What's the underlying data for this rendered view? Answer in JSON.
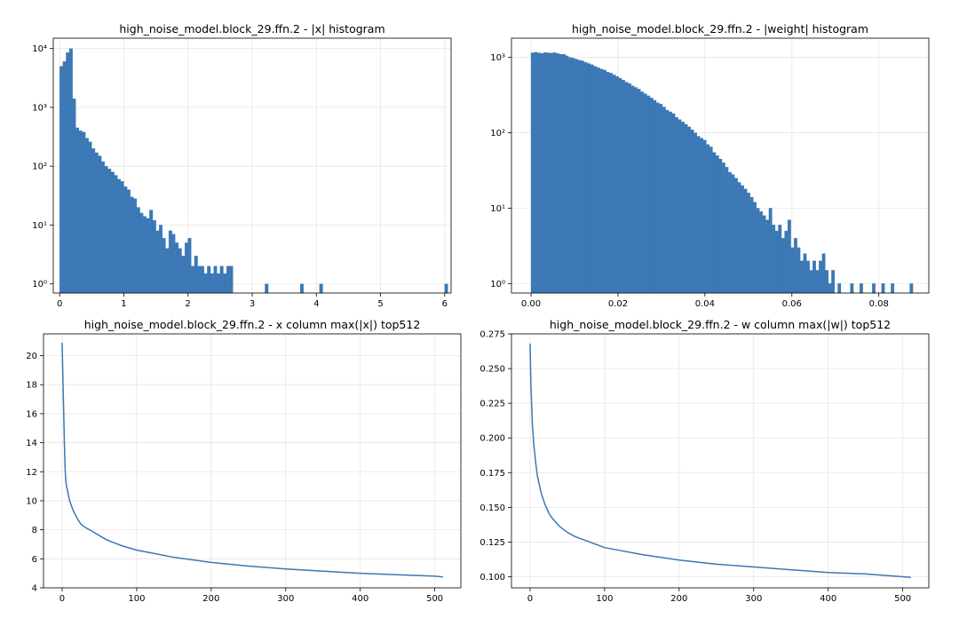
{
  "chart_data": [
    {
      "type": "bar",
      "title": "high_noise_model.block_29.ffn.2 - |x| histogram",
      "xlabel": "",
      "ylabel": "",
      "y_scale": "log",
      "xlim": [
        -0.1,
        6.1
      ],
      "ylim": [
        0.7,
        15000
      ],
      "x_ticks": [
        0,
        1,
        2,
        3,
        4,
        5,
        6
      ],
      "x_tick_labels": [
        "0",
        "1",
        "2",
        "3",
        "4",
        "5",
        "6"
      ],
      "y_ticks": [
        1,
        10,
        100,
        1000,
        10000
      ],
      "y_tick_labels": [
        "10⁰",
        "10¹",
        "10²",
        "10³",
        "10⁴"
      ],
      "grid": true,
      "color": "#3b78b5",
      "bin_width": 0.05,
      "bins": [
        [
          0.0,
          5000
        ],
        [
          0.05,
          6000
        ],
        [
          0.1,
          8500
        ],
        [
          0.15,
          10000
        ],
        [
          0.2,
          1400
        ],
        [
          0.25,
          450
        ],
        [
          0.3,
          400
        ],
        [
          0.35,
          380
        ],
        [
          0.4,
          300
        ],
        [
          0.45,
          260
        ],
        [
          0.5,
          200
        ],
        [
          0.55,
          170
        ],
        [
          0.6,
          150
        ],
        [
          0.65,
          120
        ],
        [
          0.7,
          100
        ],
        [
          0.75,
          90
        ],
        [
          0.8,
          80
        ],
        [
          0.85,
          70
        ],
        [
          0.9,
          60
        ],
        [
          0.95,
          55
        ],
        [
          1.0,
          45
        ],
        [
          1.05,
          40
        ],
        [
          1.1,
          30
        ],
        [
          1.15,
          28
        ],
        [
          1.2,
          20
        ],
        [
          1.25,
          16
        ],
        [
          1.3,
          14
        ],
        [
          1.35,
          13
        ],
        [
          1.4,
          18
        ],
        [
          1.45,
          12
        ],
        [
          1.5,
          8
        ],
        [
          1.55,
          10
        ],
        [
          1.6,
          6
        ],
        [
          1.65,
          4
        ],
        [
          1.7,
          8
        ],
        [
          1.75,
          7
        ],
        [
          1.8,
          5
        ],
        [
          1.85,
          4
        ],
        [
          1.9,
          3
        ],
        [
          1.95,
          5
        ],
        [
          2.0,
          6
        ],
        [
          2.05,
          2
        ],
        [
          2.1,
          3
        ],
        [
          2.15,
          2
        ],
        [
          2.2,
          2
        ],
        [
          2.25,
          1.5
        ],
        [
          2.3,
          2
        ],
        [
          2.35,
          1.5
        ],
        [
          2.4,
          2
        ],
        [
          2.45,
          1.5
        ],
        [
          2.5,
          2
        ],
        [
          2.55,
          1.5
        ],
        [
          2.6,
          2
        ],
        [
          2.65,
          2
        ],
        [
          3.2,
          1
        ],
        [
          3.75,
          1
        ],
        [
          4.05,
          1
        ],
        [
          6.0,
          1
        ]
      ]
    },
    {
      "type": "bar",
      "title": "high_noise_model.block_29.ffn.2 - |weight| histogram",
      "xlabel": "",
      "ylabel": "",
      "y_scale": "log",
      "xlim": [
        -0.0045,
        0.0915
      ],
      "ylim": [
        0.75,
        1800
      ],
      "x_ticks": [
        0.0,
        0.02,
        0.04,
        0.06,
        0.08
      ],
      "x_tick_labels": [
        "0.00",
        "0.02",
        "0.04",
        "0.06",
        "0.08"
      ],
      "y_ticks": [
        1,
        10,
        100,
        1000
      ],
      "y_tick_labels": [
        "10⁰",
        "10¹",
        "10²",
        "10³"
      ],
      "grid": true,
      "color": "#3b78b5",
      "bin_width": 0.00072,
      "bins": [
        [
          0.0,
          1150
        ],
        [
          0.00072,
          1170
        ],
        [
          0.00144,
          1150
        ],
        [
          0.00216,
          1130
        ],
        [
          0.00288,
          1160
        ],
        [
          0.0036,
          1150
        ],
        [
          0.00432,
          1140
        ],
        [
          0.00504,
          1160
        ],
        [
          0.00576,
          1130
        ],
        [
          0.00648,
          1100
        ],
        [
          0.0072,
          1100
        ],
        [
          0.00792,
          1050
        ],
        [
          0.00864,
          1000
        ],
        [
          0.00936,
          980
        ],
        [
          0.01008,
          950
        ],
        [
          0.0108,
          920
        ],
        [
          0.01152,
          900
        ],
        [
          0.01224,
          860
        ],
        [
          0.01296,
          830
        ],
        [
          0.01368,
          800
        ],
        [
          0.0144,
          760
        ],
        [
          0.01512,
          730
        ],
        [
          0.01584,
          700
        ],
        [
          0.01656,
          680
        ],
        [
          0.01728,
          640
        ],
        [
          0.018,
          620
        ],
        [
          0.01872,
          590
        ],
        [
          0.01944,
          560
        ],
        [
          0.02016,
          530
        ],
        [
          0.02088,
          500
        ],
        [
          0.0216,
          470
        ],
        [
          0.02232,
          450
        ],
        [
          0.02304,
          420
        ],
        [
          0.02376,
          400
        ],
        [
          0.02448,
          380
        ],
        [
          0.0252,
          350
        ],
        [
          0.02592,
          330
        ],
        [
          0.02664,
          310
        ],
        [
          0.02736,
          290
        ],
        [
          0.02808,
          270
        ],
        [
          0.0288,
          250
        ],
        [
          0.02952,
          240
        ],
        [
          0.03024,
          220
        ],
        [
          0.03096,
          200
        ],
        [
          0.03168,
          190
        ],
        [
          0.0324,
          180
        ],
        [
          0.03312,
          160
        ],
        [
          0.03384,
          150
        ],
        [
          0.03456,
          140
        ],
        [
          0.03528,
          130
        ],
        [
          0.036,
          120
        ],
        [
          0.03672,
          110
        ],
        [
          0.03744,
          100
        ],
        [
          0.03816,
          90
        ],
        [
          0.03888,
          85
        ],
        [
          0.0396,
          80
        ],
        [
          0.04032,
          70
        ],
        [
          0.04104,
          65
        ],
        [
          0.04176,
          55
        ],
        [
          0.04248,
          50
        ],
        [
          0.0432,
          45
        ],
        [
          0.04392,
          40
        ],
        [
          0.04464,
          35
        ],
        [
          0.04536,
          30
        ],
        [
          0.04608,
          28
        ],
        [
          0.0468,
          25
        ],
        [
          0.04752,
          22
        ],
        [
          0.04824,
          20
        ],
        [
          0.04896,
          18
        ],
        [
          0.04968,
          16
        ],
        [
          0.0504,
          14
        ],
        [
          0.05112,
          12
        ],
        [
          0.05184,
          10
        ],
        [
          0.05256,
          9
        ],
        [
          0.05328,
          8
        ],
        [
          0.054,
          7
        ],
        [
          0.05472,
          10
        ],
        [
          0.05544,
          6
        ],
        [
          0.05616,
          5
        ],
        [
          0.05688,
          6
        ],
        [
          0.0576,
          4
        ],
        [
          0.05832,
          5
        ],
        [
          0.05904,
          7
        ],
        [
          0.05976,
          3
        ],
        [
          0.06048,
          4
        ],
        [
          0.0612,
          3
        ],
        [
          0.06192,
          2
        ],
        [
          0.06264,
          2.5
        ],
        [
          0.06336,
          2
        ],
        [
          0.06408,
          1.5
        ],
        [
          0.0648,
          2
        ],
        [
          0.06552,
          1.5
        ],
        [
          0.06624,
          2
        ],
        [
          0.06696,
          2.5
        ],
        [
          0.06768,
          1.5
        ],
        [
          0.0684,
          1
        ],
        [
          0.06912,
          1.5
        ],
        [
          0.07056,
          1
        ],
        [
          0.07344,
          1
        ],
        [
          0.0756,
          1
        ],
        [
          0.07848,
          1
        ],
        [
          0.08064,
          1
        ],
        [
          0.0828,
          1
        ],
        [
          0.08712,
          1
        ]
      ]
    },
    {
      "type": "line",
      "title": "high_noise_model.block_29.ffn.2 - x column max(|x|) top512",
      "xlabel": "",
      "ylabel": "",
      "xlim": [
        -25,
        535
      ],
      "ylim": [
        4,
        21.5
      ],
      "x_ticks": [
        0,
        100,
        200,
        300,
        400,
        500
      ],
      "y_ticks": [
        4,
        6,
        8,
        10,
        12,
        14,
        16,
        18,
        20
      ],
      "grid": true,
      "color": "#3b78b5",
      "x": [
        0,
        1,
        2,
        3,
        4,
        5,
        6,
        8,
        10,
        15,
        20,
        25,
        30,
        40,
        50,
        60,
        70,
        80,
        100,
        120,
        150,
        200,
        250,
        300,
        350,
        400,
        450,
        500,
        511
      ],
      "y": [
        20.9,
        18.5,
        16.3,
        14.0,
        12.2,
        11.3,
        11.0,
        10.5,
        10.0,
        9.3,
        8.8,
        8.4,
        8.2,
        7.9,
        7.6,
        7.3,
        7.1,
        6.9,
        6.6,
        6.4,
        6.1,
        5.75,
        5.5,
        5.3,
        5.15,
        5.0,
        4.9,
        4.8,
        4.75
      ]
    },
    {
      "type": "line",
      "title": "high_noise_model.block_29.ffn.2 - w column max(|w|) top512",
      "xlabel": "",
      "ylabel": "",
      "xlim": [
        -25,
        535
      ],
      "ylim": [
        0.092,
        0.275
      ],
      "x_ticks": [
        0,
        100,
        200,
        300,
        400,
        500
      ],
      "y_ticks": [
        0.1,
        0.125,
        0.15,
        0.175,
        0.2,
        0.225,
        0.25,
        0.275
      ],
      "y_tick_labels": [
        "0.100",
        "0.125",
        "0.150",
        "0.175",
        "0.200",
        "0.225",
        "0.250",
        "0.275"
      ],
      "grid": true,
      "color": "#3b78b5",
      "x": [
        0,
        1,
        2,
        3,
        5,
        8,
        10,
        15,
        20,
        25,
        30,
        40,
        50,
        60,
        70,
        80,
        100,
        120,
        150,
        200,
        250,
        300,
        350,
        400,
        450,
        500,
        511
      ],
      "y": [
        0.268,
        0.24,
        0.225,
        0.21,
        0.195,
        0.18,
        0.172,
        0.16,
        0.152,
        0.146,
        0.142,
        0.136,
        0.132,
        0.129,
        0.127,
        0.125,
        0.121,
        0.119,
        0.116,
        0.112,
        0.109,
        0.107,
        0.105,
        0.103,
        0.102,
        0.1,
        0.0995
      ]
    }
  ]
}
